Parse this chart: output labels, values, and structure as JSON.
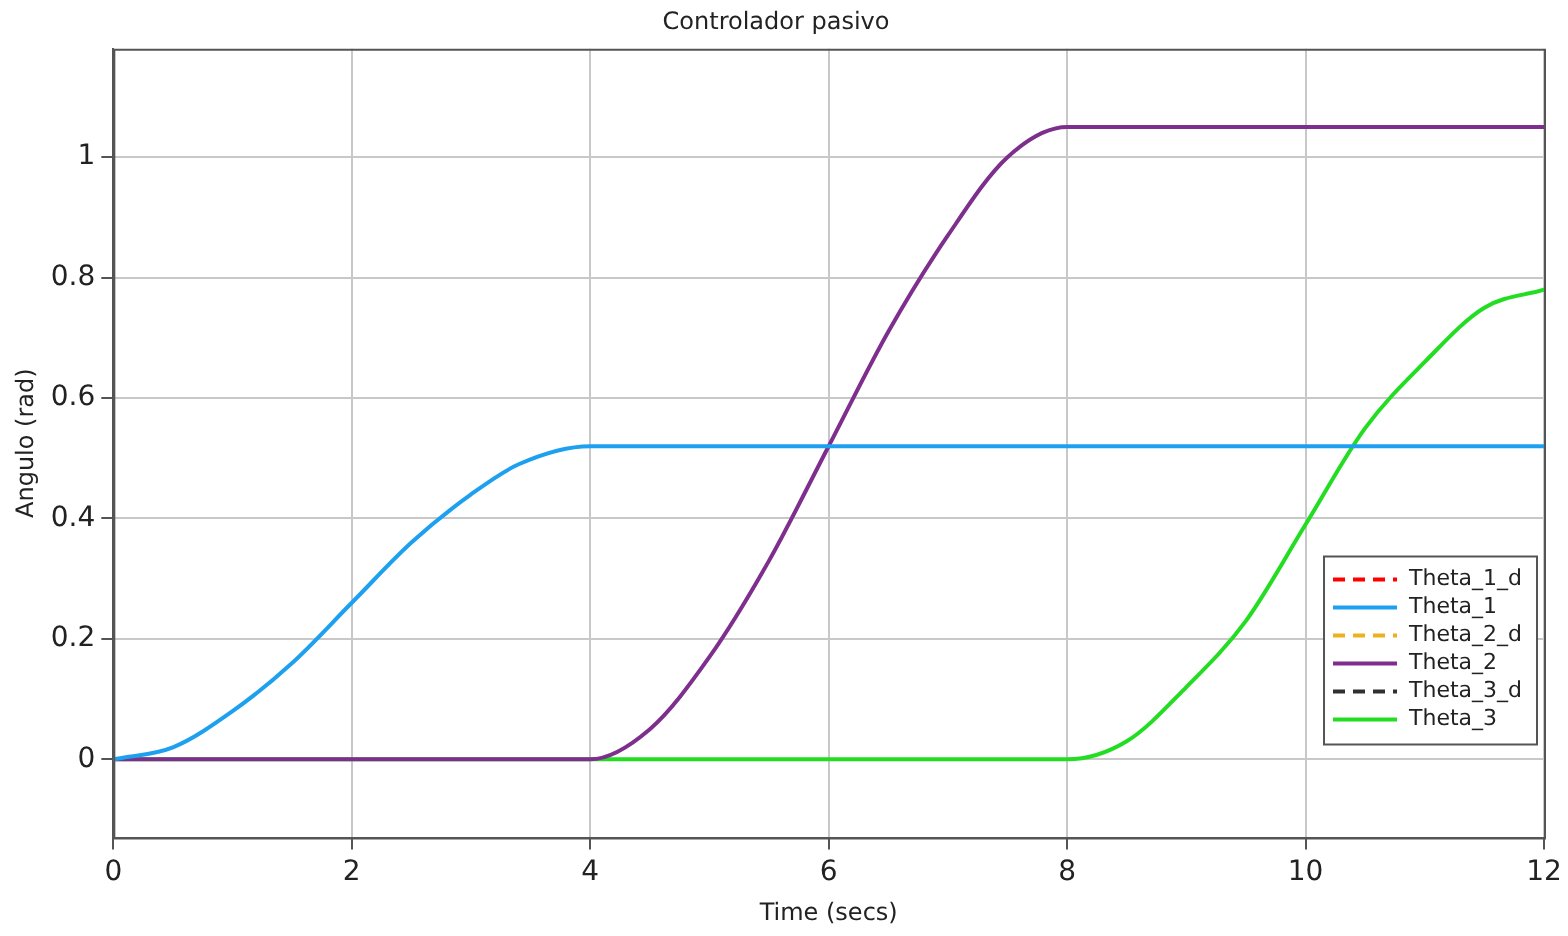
{
  "chart_data": {
    "type": "line",
    "title": "Controlador pasivo",
    "xlabel": "Time (secs)",
    "ylabel": "Angulo (rad)",
    "xlim": [
      0,
      12
    ],
    "ylim": [
      -0.13,
      1.18
    ],
    "xticks": [
      0,
      2,
      4,
      6,
      8,
      10,
      12
    ],
    "yticks": [
      0,
      0.2,
      0.4,
      0.6,
      0.8,
      1
    ],
    "grid": true,
    "legend": "bottom right",
    "marker": "none",
    "series": [
      {
        "name": "Theta_1_d",
        "color": "#ff0000",
        "line_style": "dashed"
      },
      {
        "name": "Theta_1",
        "color": "#1ea0f0",
        "x": [
          0,
          0.5,
          1,
          1.5,
          2,
          2.5,
          3,
          3.4,
          4,
          12
        ],
        "values": [
          0,
          0.02,
          0.08,
          0.16,
          0.26,
          0.36,
          0.44,
          0.49,
          0.52,
          0.52
        ]
      },
      {
        "name": "Theta_2_d",
        "color": "#edb120",
        "line_style": "dashed"
      },
      {
        "name": "Theta_2",
        "color": "#7e2f8e",
        "x": [
          0,
          4,
          4.5,
          5,
          5.5,
          6,
          6.5,
          7,
          7.5,
          8,
          12
        ],
        "values": [
          0,
          0,
          0.05,
          0.17,
          0.33,
          0.52,
          0.71,
          0.87,
          1.0,
          1.05,
          1.05
        ]
      },
      {
        "name": "Theta_3_d",
        "color": "#303030",
        "line_style": "dashed"
      },
      {
        "name": "Theta_3",
        "color": "#22dd22",
        "x": [
          0,
          8,
          8.5,
          9,
          9.5,
          10,
          10.5,
          11,
          11.5,
          12
        ],
        "values": [
          0,
          0,
          0.03,
          0.12,
          0.23,
          0.39,
          0.55,
          0.66,
          0.75,
          0.78
        ]
      }
    ]
  }
}
